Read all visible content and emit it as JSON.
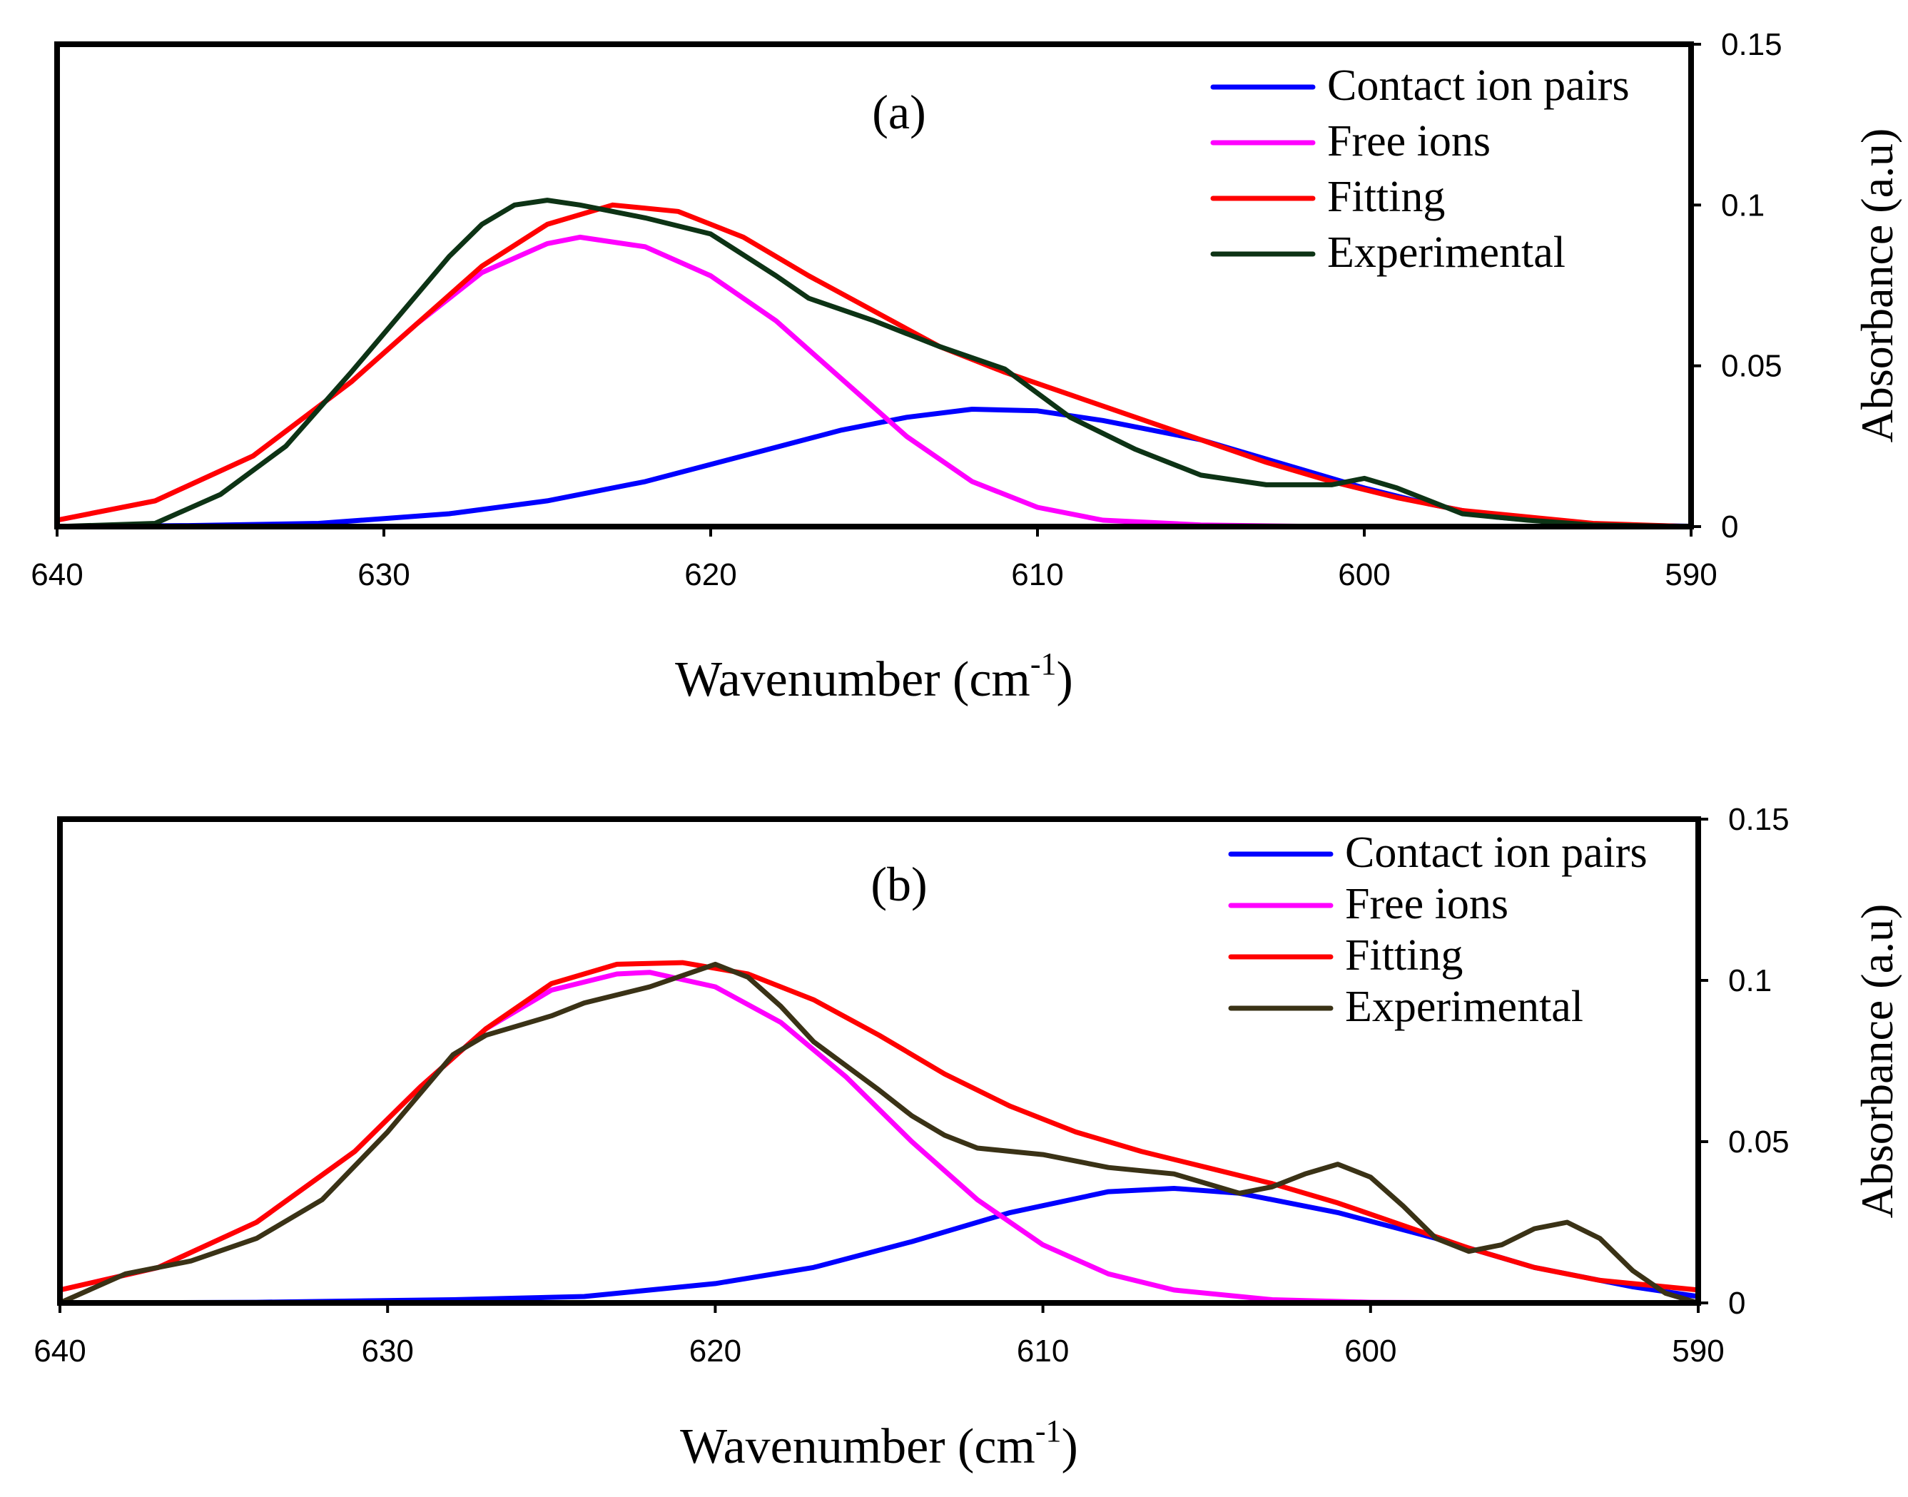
{
  "chart_data": [
    {
      "type": "line",
      "panel_label": "(a)",
      "xlabel": "Wavenumber (cm",
      "xlabel_sup": "-1",
      "xlabel_close": ")",
      "ylabel": "Absorbance (a.u)",
      "xlim": [
        640,
        590
      ],
      "ylim": [
        0,
        0.15
      ],
      "xticks": [
        640,
        630,
        620,
        610,
        600,
        590
      ],
      "xtick_labels": [
        "640",
        "630",
        "620",
        "610",
        "600",
        "590"
      ],
      "yticks": [
        0,
        0.05,
        0.1,
        0.15
      ],
      "ytick_labels": [
        "0",
        "0.05",
        "0.1",
        "0.15"
      ],
      "grid": false,
      "legend_position": "top-right",
      "series": [
        {
          "name": "Contact ion pairs",
          "color": "#0000ff",
          "x": [
            640,
            636,
            632,
            628,
            625,
            622,
            619,
            616,
            614,
            612,
            610,
            608,
            605,
            602,
            600,
            598,
            596,
            594,
            592,
            590
          ],
          "values": [
            0.0,
            0.0003,
            0.001,
            0.004,
            0.008,
            0.014,
            0.022,
            0.03,
            0.034,
            0.0365,
            0.036,
            0.033,
            0.027,
            0.018,
            0.012,
            0.007,
            0.003,
            0.0012,
            0.0004,
            0.0001
          ]
        },
        {
          "name": "Free ions",
          "color": "#ff00ff",
          "x": [
            640,
            637,
            634,
            631,
            629,
            627,
            625,
            624,
            622,
            620,
            618,
            616,
            614,
            612,
            610,
            608,
            605,
            602,
            598,
            594,
            590
          ],
          "values": [
            0.002,
            0.008,
            0.022,
            0.045,
            0.063,
            0.079,
            0.088,
            0.09,
            0.087,
            0.078,
            0.064,
            0.046,
            0.028,
            0.014,
            0.006,
            0.002,
            0.0005,
            0.0001,
            0.0,
            0.0,
            0.0
          ]
        },
        {
          "name": "Fitting",
          "color": "#ff0000",
          "x": [
            640,
            637,
            634,
            631,
            629,
            627,
            625,
            623,
            621,
            619,
            617,
            615,
            613,
            611,
            609,
            607,
            605,
            603,
            601,
            599,
            597,
            595,
            593,
            590
          ],
          "values": [
            0.002,
            0.008,
            0.022,
            0.045,
            0.063,
            0.081,
            0.094,
            0.1,
            0.098,
            0.09,
            0.078,
            0.067,
            0.056,
            0.048,
            0.041,
            0.034,
            0.027,
            0.02,
            0.014,
            0.009,
            0.005,
            0.003,
            0.001,
            0.0
          ]
        },
        {
          "name": "Experimental",
          "color": "#0d3315",
          "x": [
            640,
            637,
            635,
            633,
            631,
            629,
            628,
            627,
            626,
            625,
            624,
            622,
            620,
            618,
            617,
            615,
            613,
            611,
            609,
            607,
            605,
            603,
            601,
            600,
            599,
            597,
            595,
            593,
            590
          ],
          "values": [
            0.0,
            0.001,
            0.01,
            0.025,
            0.048,
            0.072,
            0.084,
            0.094,
            0.1,
            0.1015,
            0.1,
            0.096,
            0.091,
            0.078,
            0.071,
            0.064,
            0.056,
            0.049,
            0.034,
            0.024,
            0.016,
            0.013,
            0.013,
            0.015,
            0.012,
            0.004,
            0.002,
            0.0005,
            0.0
          ]
        }
      ]
    },
    {
      "type": "line",
      "panel_label": "(b)",
      "xlabel": "Wavenumber (cm",
      "xlabel_sup": "-1",
      "xlabel_close": ")",
      "ylabel": "Absorbance (a.u)",
      "xlim": [
        640,
        590
      ],
      "ylim": [
        0,
        0.15
      ],
      "xticks": [
        640,
        630,
        620,
        610,
        600,
        590
      ],
      "xtick_labels": [
        "640",
        "630",
        "620",
        "610",
        "600",
        "590"
      ],
      "yticks": [
        0,
        0.05,
        0.1,
        0.15
      ],
      "ytick_labels": [
        "0",
        "0.05",
        "0.1",
        "0.15"
      ],
      "grid": false,
      "legend_position": "top-right",
      "series": [
        {
          "name": "Contact ion pairs",
          "color": "#0000ff",
          "x": [
            640,
            634,
            628,
            624,
            620,
            617,
            614,
            611,
            608,
            606,
            604,
            601,
            598,
            595,
            592,
            590
          ],
          "values": [
            0.0,
            0.0002,
            0.001,
            0.002,
            0.006,
            0.011,
            0.019,
            0.028,
            0.0345,
            0.0355,
            0.034,
            0.028,
            0.02,
            0.011,
            0.005,
            0.002
          ]
        },
        {
          "name": "Free ions",
          "color": "#ff00ff",
          "x": [
            640,
            637,
            634,
            631,
            629,
            627,
            625,
            623,
            622,
            620,
            618,
            616,
            614,
            612,
            610,
            608,
            606,
            603,
            600,
            596,
            590
          ],
          "values": [
            0.004,
            0.011,
            0.025,
            0.047,
            0.067,
            0.085,
            0.097,
            0.102,
            0.1025,
            0.098,
            0.087,
            0.07,
            0.05,
            0.032,
            0.018,
            0.009,
            0.004,
            0.001,
            0.0002,
            0.0,
            0.0
          ]
        },
        {
          "name": "Fitting",
          "color": "#ff0000",
          "x": [
            640,
            637,
            634,
            631,
            629,
            627,
            625,
            623,
            621,
            619,
            617,
            615,
            613,
            611,
            609,
            607,
            605,
            603,
            601,
            599,
            597,
            595,
            593,
            590
          ],
          "values": [
            0.004,
            0.011,
            0.025,
            0.047,
            0.067,
            0.085,
            0.099,
            0.105,
            0.1055,
            0.102,
            0.094,
            0.083,
            0.071,
            0.061,
            0.053,
            0.047,
            0.042,
            0.037,
            0.031,
            0.024,
            0.017,
            0.011,
            0.007,
            0.004
          ]
        },
        {
          "name": "Experimental",
          "color": "#3a3216",
          "x": [
            640,
            638,
            636,
            634,
            632,
            630,
            628,
            627,
            626,
            625,
            624,
            622,
            620,
            619,
            618,
            617,
            615,
            614,
            613,
            612,
            610,
            608,
            606,
            604,
            603,
            602,
            601,
            600,
            599,
            598,
            597,
            596,
            595,
            594,
            593,
            592,
            591,
            590
          ],
          "values": [
            0.0,
            0.009,
            0.013,
            0.02,
            0.032,
            0.053,
            0.077,
            0.083,
            0.086,
            0.089,
            0.093,
            0.098,
            0.105,
            0.101,
            0.092,
            0.081,
            0.066,
            0.058,
            0.052,
            0.048,
            0.046,
            0.042,
            0.04,
            0.034,
            0.036,
            0.04,
            0.043,
            0.039,
            0.03,
            0.02,
            0.016,
            0.018,
            0.023,
            0.025,
            0.02,
            0.01,
            0.003,
            0.0
          ]
        }
      ]
    }
  ]
}
